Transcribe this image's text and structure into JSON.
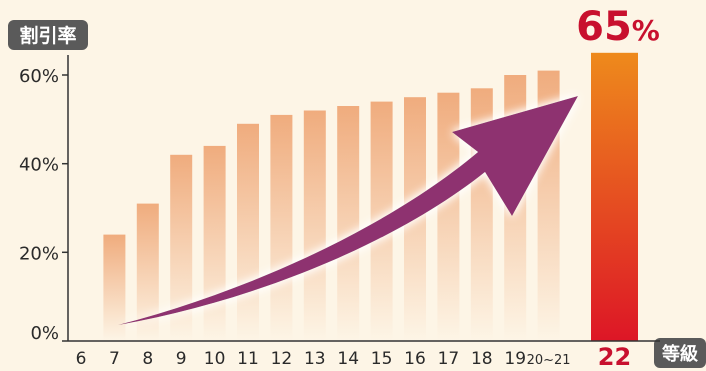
{
  "chart_data": {
    "type": "bar",
    "ylabel": "割引率",
    "xlabel": "等級",
    "y_ticks": [
      "0%",
      "20%",
      "40%",
      "60%"
    ],
    "ylim": [
      0,
      70
    ],
    "grid": false,
    "categories": [
      "6",
      "7",
      "8",
      "9",
      "10",
      "11",
      "12",
      "13",
      "14",
      "15",
      "16",
      "17",
      "18",
      "19",
      "20~21",
      "22"
    ],
    "values": [
      null,
      24,
      31,
      42,
      44,
      49,
      51,
      52,
      53,
      54,
      55,
      56,
      57,
      60,
      61,
      65
    ],
    "highlight": {
      "category": "22",
      "value_label": "65",
      "unit": "%",
      "color": "#c8102e"
    },
    "colors": {
      "background": "#fdf5e6",
      "bar_fill": "#efa878",
      "highlight_top": "#ee8a1c",
      "highlight_bottom": "#dd1626",
      "arrow": "#8e3370",
      "label_box": "#5a5a5a",
      "axis": "#333333"
    }
  }
}
